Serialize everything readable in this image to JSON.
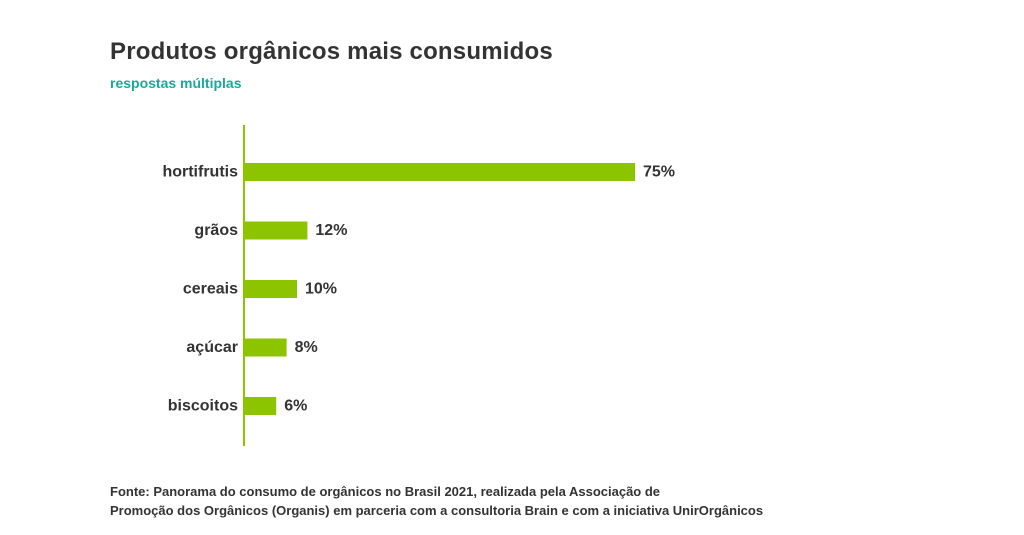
{
  "title": "Produtos orgânicos mais consumidos",
  "subtitle": "respostas múltiplas",
  "source": {
    "line1": "Fonte: Panorama do consumo de orgânicos no Brasil 2021,  realizada pela Associação de",
    "line2": "Promoção dos Orgânicos (Organis) em parceria com a consultoria Brain e com a iniciativa UnirOrgânicos"
  },
  "colors": {
    "bar": "#8dc400",
    "axis": "#8dc400",
    "title": "#333333",
    "subtitle": "#1aa89a"
  },
  "chart_data": {
    "type": "bar",
    "orientation": "horizontal",
    "title": "Produtos orgânicos mais consumidos",
    "subtitle": "respostas múltiplas",
    "categories": [
      "hortifrutis",
      "grãos",
      "cereais",
      "açúcar",
      "biscoitos"
    ],
    "values": [
      75,
      12,
      10,
      8,
      6
    ],
    "value_labels": [
      "75%",
      "12%",
      "10%",
      "8%",
      "6%"
    ],
    "unit": "%",
    "xlim": [
      0,
      100
    ],
    "grid": false,
    "legend": "none"
  }
}
